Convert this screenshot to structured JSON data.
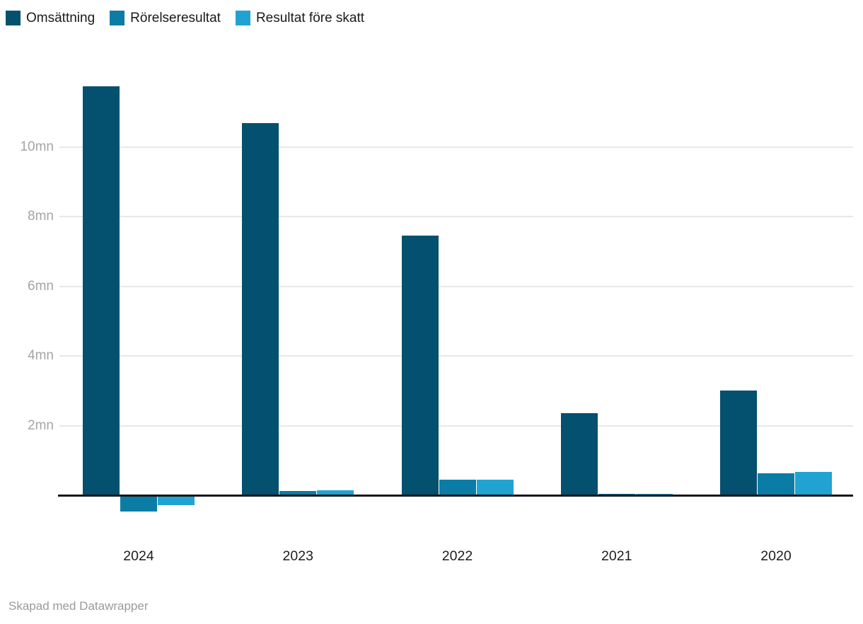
{
  "chart_data": {
    "type": "bar",
    "categories": [
      "2024",
      "2023",
      "2022",
      "2021",
      "2020"
    ],
    "series": [
      {
        "name": "Omsättning",
        "color": "#03506f",
        "values": [
          11.75,
          10.7,
          7.45,
          2.36,
          3.0
        ]
      },
      {
        "name": "Rörelseresultat",
        "color": "#0a7ca6",
        "values": [
          -0.44,
          0.12,
          0.45,
          0.05,
          0.62
        ]
      },
      {
        "name": "Resultat före skatt",
        "color": "#21a3d2",
        "values": [
          -0.26,
          0.14,
          0.45,
          0.04,
          0.68
        ]
      }
    ],
    "unit": "mn",
    "y_ticks": [
      2,
      4,
      6,
      8,
      10
    ],
    "y_tick_labels": [
      "2mn",
      "4mn",
      "6mn",
      "8mn",
      "10mn"
    ],
    "ylim": [
      -0.9,
      12.4
    ],
    "grid": true,
    "legend_position": "top-left",
    "colors": {
      "gridline": "#e8e8e8",
      "axis_line": "#16161a",
      "tick_text": "#a5a5a5",
      "category_text": "#1d1d1d"
    }
  },
  "footer": {
    "credit": "Skapad med Datawrapper"
  }
}
